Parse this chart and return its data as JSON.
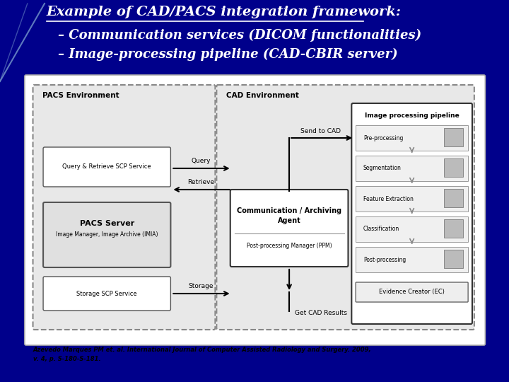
{
  "bg_color": "#00008B",
  "title_line1": "Example of CAD/PACS integration framework:",
  "title_line2": "– Communication services (DICOM functionalities)",
  "title_line3": "– Image-processing pipeline (CAD-CBIR server)",
  "citation_line1": "Azevedo Marques PM et. al. International Journal of Computer Assisted Radiology and Surgery. 2009,",
  "citation_line2": "v. 4, p. S-180-S-181.",
  "pacs_env_label": "PACS Environment",
  "cad_env_label": "CAD Environment",
  "pipeline_label": "Image processing pipeline",
  "query_retrieve_label": "Query & Retrieve SCP Service",
  "pacs_server_label": "PACS Server",
  "pacs_server_sub": "Image Manager, Image Archive (IMIA)",
  "storage_scp_label": "Storage SCP Service",
  "comm_agent_line1": "Communication / Archiving",
  "comm_agent_line2": "Agent",
  "ppm_label": "Post-processing Manager (PPM)",
  "pipeline_steps": [
    "Pre-processing",
    "Segmentation",
    "Feature Extraction",
    "Classification",
    "Post-processing"
  ],
  "evidence_label": "Evidence Creator (EC)",
  "send_to_cad": "Send to CAD",
  "query_label": "Query",
  "retrieve_label": "Retrieve",
  "storage_label": "Storage",
  "get_cad_label": "Get CAD Results"
}
